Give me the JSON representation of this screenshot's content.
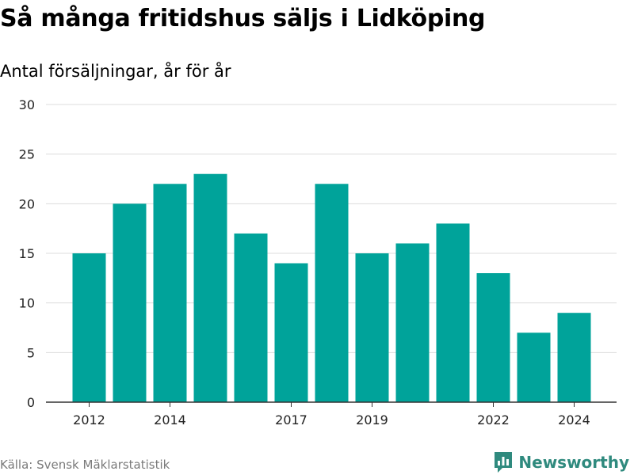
{
  "title": "Så många fritidshus säljs i Lidköping",
  "subtitle": "Antal försäljningar, år för år",
  "source": "Källa: Svensk Mäklarstatistik",
  "brand": "Newsworthy",
  "colors": {
    "bar": "#00a39a",
    "grid": "#dcdcdc",
    "axis": "#333333",
    "brand": "#2f8a7e"
  },
  "chart_data": {
    "type": "bar",
    "categories": [
      "2012",
      "2013",
      "2014",
      "2015",
      "2016",
      "2017",
      "2018",
      "2019",
      "2020",
      "2021",
      "2022",
      "2023",
      "2024"
    ],
    "values": [
      15,
      20,
      22,
      23,
      17,
      14,
      22,
      15,
      16,
      18,
      13,
      7,
      9
    ],
    "xtick_labels": [
      "2012",
      "",
      "2014",
      "",
      "",
      "2017",
      "",
      "2019",
      "",
      "",
      "2022",
      "",
      "2024"
    ],
    "yticks": [
      0,
      5,
      10,
      15,
      20,
      25,
      30
    ],
    "ylim": [
      0,
      30
    ],
    "grid": true,
    "legend": false,
    "title": "Så många fritidshus säljs i Lidköping",
    "ylabel": "Antal försäljningar, år för år",
    "xlabel": ""
  }
}
